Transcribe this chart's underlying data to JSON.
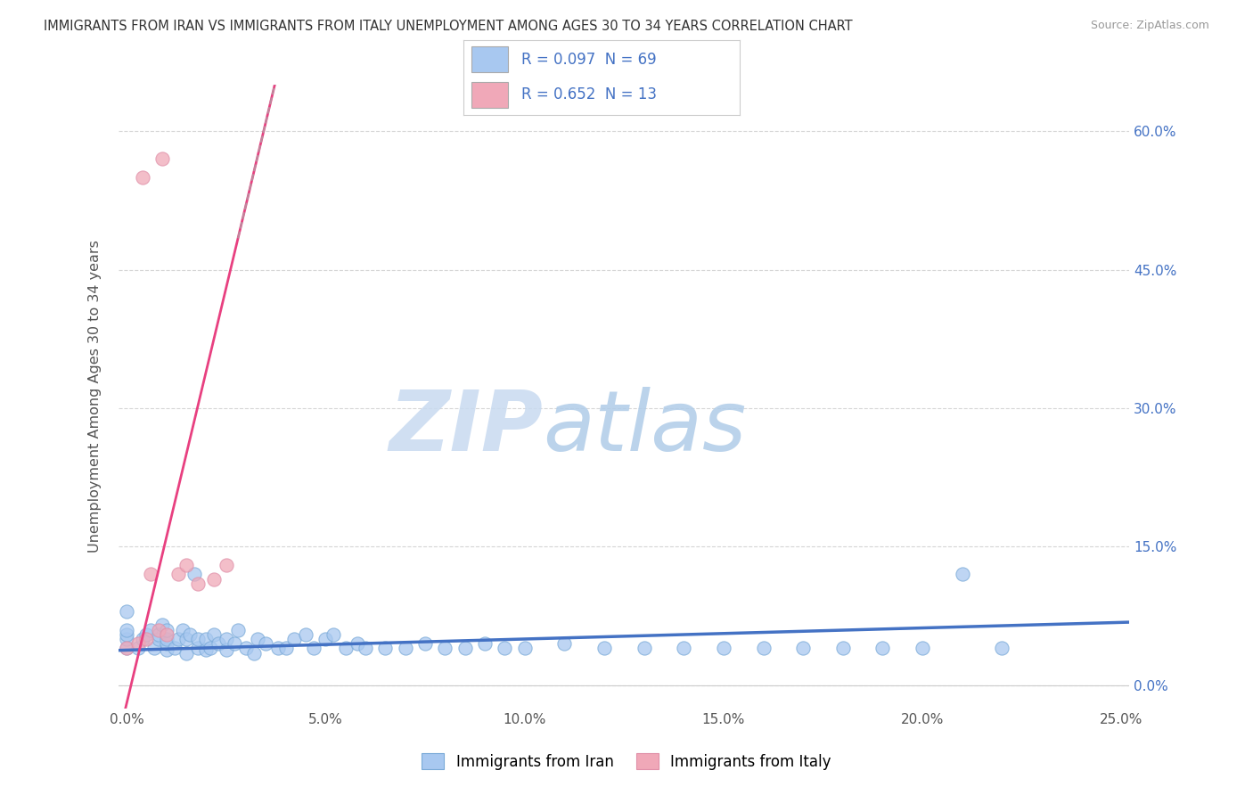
{
  "title": "IMMIGRANTS FROM IRAN VS IMMIGRANTS FROM ITALY UNEMPLOYMENT AMONG AGES 30 TO 34 YEARS CORRELATION CHART",
  "source": "Source: ZipAtlas.com",
  "xlabel": "",
  "ylabel": "Unemployment Among Ages 30 to 34 years",
  "xlim": [
    -0.002,
    0.252
  ],
  "ylim": [
    -0.025,
    0.65
  ],
  "xticks": [
    0.0,
    0.05,
    0.1,
    0.15,
    0.2,
    0.25
  ],
  "xticklabels": [
    "0.0%",
    "5.0%",
    "10.0%",
    "15.0%",
    "20.0%",
    "25.0%"
  ],
  "yticks": [
    0.0,
    0.15,
    0.3,
    0.45,
    0.6
  ],
  "yticklabels": [
    "0.0%",
    "15.0%",
    "30.0%",
    "45.0%",
    "60.0%"
  ],
  "iran_R": 0.097,
  "iran_N": 69,
  "italy_R": 0.652,
  "italy_N": 13,
  "iran_color": "#a8c8f0",
  "italy_color": "#f0a8b8",
  "iran_edge_color": "#7aaad8",
  "italy_edge_color": "#e090a8",
  "iran_line_color": "#4472c4",
  "italy_line_color": "#e84080",
  "iran_scatter_x": [
    0.0,
    0.0,
    0.0,
    0.0,
    0.0,
    0.003,
    0.004,
    0.005,
    0.006,
    0.007,
    0.008,
    0.008,
    0.009,
    0.01,
    0.01,
    0.01,
    0.01,
    0.012,
    0.013,
    0.014,
    0.015,
    0.015,
    0.016,
    0.017,
    0.018,
    0.018,
    0.02,
    0.02,
    0.021,
    0.022,
    0.023,
    0.025,
    0.025,
    0.027,
    0.028,
    0.03,
    0.032,
    0.033,
    0.035,
    0.038,
    0.04,
    0.042,
    0.045,
    0.047,
    0.05,
    0.052,
    0.055,
    0.058,
    0.06,
    0.065,
    0.07,
    0.075,
    0.08,
    0.085,
    0.09,
    0.095,
    0.1,
    0.11,
    0.12,
    0.13,
    0.14,
    0.15,
    0.16,
    0.17,
    0.18,
    0.19,
    0.2,
    0.21,
    0.22
  ],
  "iran_scatter_y": [
    0.04,
    0.05,
    0.055,
    0.06,
    0.08,
    0.04,
    0.05,
    0.055,
    0.06,
    0.04,
    0.05,
    0.055,
    0.065,
    0.038,
    0.045,
    0.05,
    0.06,
    0.04,
    0.05,
    0.06,
    0.035,
    0.05,
    0.055,
    0.12,
    0.04,
    0.05,
    0.038,
    0.05,
    0.04,
    0.055,
    0.045,
    0.038,
    0.05,
    0.045,
    0.06,
    0.04,
    0.035,
    0.05,
    0.045,
    0.04,
    0.04,
    0.05,
    0.055,
    0.04,
    0.05,
    0.055,
    0.04,
    0.045,
    0.04,
    0.04,
    0.04,
    0.045,
    0.04,
    0.04,
    0.045,
    0.04,
    0.04,
    0.045,
    0.04,
    0.04,
    0.04,
    0.04,
    0.04,
    0.04,
    0.04,
    0.04,
    0.04,
    0.12,
    0.04
  ],
  "italy_scatter_x": [
    0.0,
    0.003,
    0.004,
    0.005,
    0.006,
    0.008,
    0.009,
    0.01,
    0.013,
    0.015,
    0.018,
    0.022,
    0.025
  ],
  "italy_scatter_y": [
    0.04,
    0.045,
    0.55,
    0.05,
    0.12,
    0.06,
    0.57,
    0.055,
    0.12,
    0.13,
    0.11,
    0.115,
    0.13
  ],
  "iran_slope": 0.12,
  "iran_intercept": 0.038,
  "italy_slope": 18.0,
  "italy_intercept": -0.02,
  "watermark_zip": "ZIP",
  "watermark_atlas": "atlas",
  "watermark_color_zip": "#c8dff0",
  "watermark_color_atlas": "#b8d8f0",
  "legend_iran_label": "Immigrants from Iran",
  "legend_italy_label": "Immigrants from Italy",
  "bg_color": "#ffffff",
  "grid_color": "#cccccc"
}
